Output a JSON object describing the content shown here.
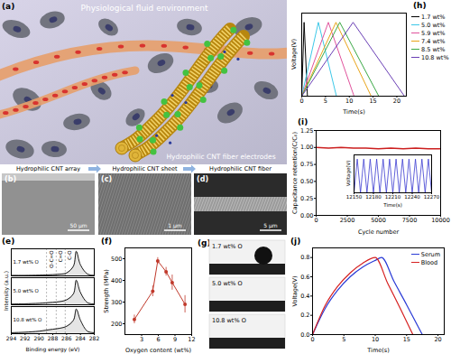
{
  "figure": {
    "a": {
      "panel_label": "(a)",
      "environment": "Physiological fluid environment",
      "electrodes": "Hydrophilic CNT fiber electrodes"
    },
    "b": {
      "panel_label": "(b)",
      "title": "Hydrophilic CNT array",
      "scale_bar": "50 μm"
    },
    "c": {
      "panel_label": "(c)",
      "title": "Hydrophilic CNT sheet",
      "scale_bar": "1 μm"
    },
    "d": {
      "panel_label": "(d)",
      "title": "Hydrophilic CNT fiber",
      "scale_bar": "5 μm"
    },
    "g": {
      "panel_label": "(g)",
      "samples": [
        "1.7 wt% O",
        "5.0 wt% O",
        "10.8 wt% O"
      ]
    }
  },
  "chart_data": [
    {
      "panel_label": "(e)",
      "type": "line",
      "xlabel": "Binding energy (eV)",
      "ylabel": "Intensity (a.u.)",
      "x": [
        294,
        292,
        290,
        289,
        288,
        287,
        286,
        285,
        284.6,
        284,
        283,
        282
      ],
      "series": [
        {
          "name": "1.7 wt% O",
          "color": "#000000",
          "values": [
            2,
            2,
            3,
            4,
            5,
            7,
            12,
            40,
            100,
            45,
            8,
            2
          ]
        },
        {
          "name": "5.0 wt% O",
          "color": "#000000",
          "values": [
            3,
            4,
            6,
            8,
            10,
            13,
            20,
            45,
            100,
            50,
            9,
            3
          ]
        },
        {
          "name": "10.8 wt% O",
          "color": "#000000",
          "values": [
            4,
            6,
            10,
            14,
            18,
            22,
            30,
            55,
            100,
            55,
            10,
            4
          ]
        }
      ],
      "annotations": [
        {
          "x": 288.9,
          "label": "O-C=O"
        },
        {
          "x": 287.5,
          "label": "C=O"
        },
        {
          "x": 286.2,
          "label": "C-O"
        }
      ],
      "xlim": [
        294,
        282
      ],
      "xticks": [
        294,
        292,
        290,
        288,
        286,
        284,
        282
      ],
      "ylim": [
        0,
        110
      ],
      "tick_labels": "x"
    },
    {
      "panel_label": "(f)",
      "type": "line",
      "marker": "circle",
      "xlabel": "Oxygen content (wt%)",
      "ylabel": "Strength (MPa)",
      "x": [
        1.7,
        5.0,
        5.9,
        7.4,
        8.5,
        10.8
      ],
      "values": [
        220,
        350,
        490,
        440,
        390,
        290
      ],
      "error": [
        20,
        25,
        15,
        20,
        35,
        40
      ],
      "color": "#c0392b",
      "xlim": [
        0,
        12
      ],
      "xticks": [
        3,
        6,
        9,
        12
      ],
      "ylim": [
        150,
        550
      ],
      "yticks": [
        200,
        300,
        400,
        500
      ]
    },
    {
      "panel_label": "(h)",
      "type": "line",
      "xlabel": "Time(s)",
      "ylabel": "Voltage(V)",
      "series": [
        {
          "name": "1.7 wt%",
          "color": "#000000",
          "x": [
            0,
            0.5,
            1.2
          ],
          "values": [
            0,
            0.8,
            0
          ]
        },
        {
          "name": "5.0 wt%",
          "color": "#3cc8e8",
          "x": [
            0,
            3.5,
            7.3
          ],
          "values": [
            0,
            0.8,
            0
          ]
        },
        {
          "name": "5.9 wt%",
          "color": "#e0529c",
          "x": [
            0,
            5.6,
            11.0
          ],
          "values": [
            0,
            0.8,
            0
          ]
        },
        {
          "name": "7.4 wt%",
          "color": "#e8a317",
          "x": [
            0,
            7.2,
            14.6
          ],
          "values": [
            0,
            0.8,
            0
          ]
        },
        {
          "name": "8.5 wt%",
          "color": "#3aa845",
          "x": [
            0,
            8.0,
            16.2
          ],
          "values": [
            0,
            0.8,
            0
          ]
        },
        {
          "name": "10.8 wt%",
          "color": "#6a3fb5",
          "x": [
            0,
            10.8,
            21.6
          ],
          "values": [
            0,
            0.8,
            0
          ]
        }
      ],
      "xlim": [
        0,
        22
      ],
      "xticks": [
        0,
        5,
        10,
        15,
        20
      ],
      "ylim": [
        0,
        0.9
      ],
      "tick_labels": "x",
      "legend": "right"
    },
    {
      "panel_label": "(i)",
      "type": "line",
      "xlabel": "Cycle number",
      "ylabel": "Capacitance retention(C/C₀)",
      "x": [
        0,
        1000,
        2000,
        3000,
        4000,
        5000,
        6000,
        7000,
        8000,
        9000,
        10000
      ],
      "values": [
        1.0,
        0.99,
        1.0,
        0.99,
        0.99,
        0.98,
        0.99,
        0.98,
        0.99,
        0.98,
        0.98
      ],
      "color": "#cc1f1f",
      "xlim": [
        0,
        10000
      ],
      "xticks": [
        0,
        2500,
        5000,
        7500,
        10000
      ],
      "ylim": [
        0,
        1.25
      ],
      "yticks": [
        {
          "value": 0,
          "label": "0.00"
        },
        0.25,
        {
          "value": 0.5,
          "label": "0.50"
        },
        0.75,
        {
          "value": 1,
          "label": "1.00"
        },
        1.25
      ]
    },
    {
      "type": "line",
      "xlabel": "Time(s)",
      "ylabel": "Voltage(V)",
      "x": [
        12150,
        12155,
        12160,
        12165,
        12170,
        12175,
        12180,
        12185,
        12190,
        12195,
        12200,
        12205,
        12210,
        12215,
        12220,
        12225,
        12230,
        12235,
        12240,
        12245,
        12250,
        12255,
        12260,
        12265,
        12270
      ],
      "values": [
        0,
        0.8,
        0,
        0.8,
        0,
        0.8,
        0,
        0.8,
        0,
        0.8,
        0,
        0.8,
        0,
        0.8,
        0,
        0.8,
        0,
        0.8,
        0,
        0.8,
        0,
        0.8,
        0,
        0.8,
        0
      ],
      "color": "#3a3ad0",
      "xlim": [
        12150,
        12270
      ],
      "xticks": [
        12150,
        12180,
        12210,
        12240,
        12270
      ],
      "ylim": [
        0,
        0.9
      ],
      "tick_labels": "x"
    },
    {
      "panel_label": "(j)",
      "type": "line",
      "xlabel": "Time(s)",
      "ylabel": "Voltage(V)",
      "series": [
        {
          "name": "Serum",
          "color": "#2a3bd6",
          "x": [
            0,
            2,
            4,
            6,
            8,
            10,
            11,
            13,
            15,
            17.5
          ],
          "values": [
            0,
            0.27,
            0.46,
            0.6,
            0.7,
            0.77,
            0.8,
            0.55,
            0.31,
            0
          ]
        },
        {
          "name": "Blood",
          "color": "#d62020",
          "x": [
            0,
            2,
            4,
            6,
            8,
            10,
            12,
            14,
            16
          ],
          "values": [
            0,
            0.3,
            0.5,
            0.64,
            0.74,
            0.8,
            0.53,
            0.27,
            0
          ]
        }
      ],
      "xlim": [
        0,
        21
      ],
      "xticks": [
        0,
        5,
        10,
        15,
        20
      ],
      "ylim": [
        0,
        0.9
      ],
      "yticks": [
        {
          "value": 0,
          "label": "0.0"
        },
        0.2,
        0.4,
        0.6,
        0.8
      ],
      "legend": "top-right"
    }
  ]
}
